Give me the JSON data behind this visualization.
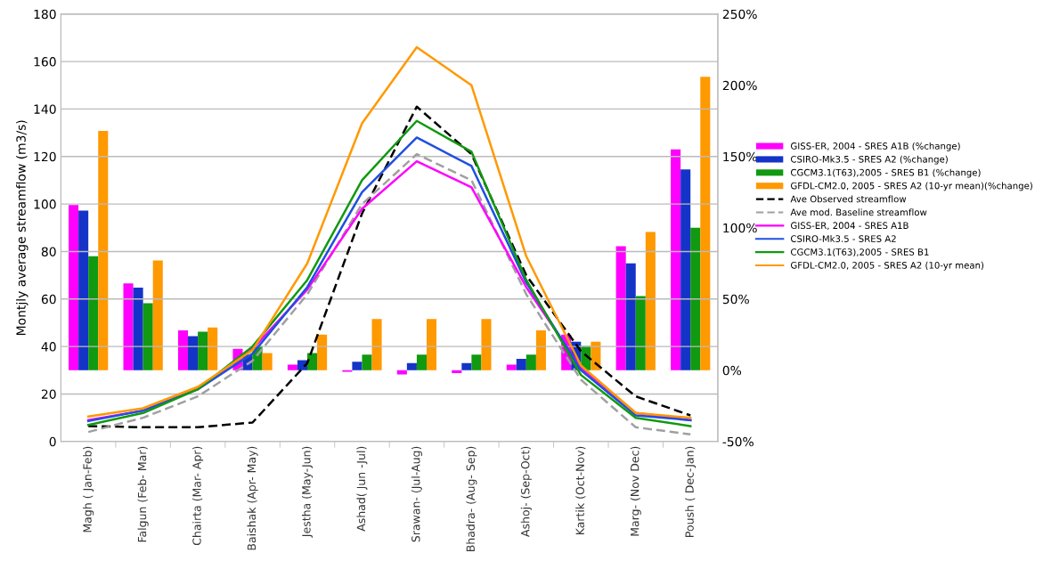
{
  "chart_data": {
    "type": "bar",
    "ylabel": "Montjly average streamflow (m3/s)",
    "categories": [
      "Magh ( Jan-Feb)",
      "Falgun (Feb- Mar)",
      "Chairta (Mar- Apr)",
      "Baishak (Apr- May)",
      "Jestha (May-Jun)",
      "Ashad( Jun -Jul)",
      "Srawan- (Jul-Aug)",
      "Bhadra- (Aug- Sep)",
      "Ashoj- (Sep-Oct)",
      "Kartik (Oct-Nov)",
      "Marg- (Nov Dec)",
      "Poush ( Dec-Jan)"
    ],
    "series": [
      {
        "name": "GISS-ER, 2004 - SRES A1B (%change)",
        "axis": "y2",
        "color": "#ff00ff",
        "values": [
          116,
          61,
          28,
          15,
          4,
          -1,
          -3,
          -2,
          4,
          25,
          87,
          155
        ]
      },
      {
        "name": "CSIRO-Mk3.5 - SRES A2 (%change)",
        "axis": "y2",
        "color": "#1434c8",
        "values": [
          112,
          58,
          24,
          11,
          7,
          6,
          5,
          5,
          8,
          20,
          75,
          141
        ]
      },
      {
        "name": "CGCM3.1(T63),2005 - SRES B1 (%change)",
        "axis": "y2",
        "color": "#119911",
        "values": [
          80,
          47,
          27,
          17,
          12,
          11,
          11,
          11,
          11,
          17,
          52,
          100
        ]
      },
      {
        "name": "GFDL-CM2.0, 2005 - SRES A2 (10-yr mean)(%change)",
        "axis": "y2",
        "color": "#ff9900",
        "values": [
          168,
          77,
          30,
          12,
          25,
          36,
          36,
          36,
          28,
          20,
          97,
          206
        ]
      },
      {
        "name": "Ave Observed streamflow",
        "type": "line",
        "line_style": "dashed",
        "color": "#000000",
        "values": [
          6.5,
          6,
          6,
          8,
          33,
          96,
          141,
          121,
          70,
          38,
          19,
          11
        ]
      },
      {
        "name": "Ave mod. Baseline streamflow",
        "type": "line",
        "line_style": "dashed",
        "color": "#a0a0a0",
        "values": [
          4,
          10,
          19,
          34,
          62,
          100,
          121,
          110,
          62,
          26,
          6,
          3
        ]
      },
      {
        "name": "GISS-ER, 2004 - SRES A1B",
        "type": "line",
        "line_style": "solid",
        "color": "#ff00ff",
        "values": [
          9,
          13,
          22,
          39,
          64,
          98,
          118,
          107,
          65,
          31,
          12,
          9
        ]
      },
      {
        "name": "CSIRO-Mk3.5 - SRES A2",
        "type": "line",
        "line_style": "solid",
        "color": "#1f4fe0",
        "values": [
          8.6,
          13,
          22,
          37,
          65,
          105,
          128,
          116,
          67,
          30,
          11,
          9
        ]
      },
      {
        "name": "CGCM3.1(T63),2005 - SRES B1",
        "type": "line",
        "line_style": "solid",
        "color": "#119911",
        "values": [
          7,
          12,
          22,
          40,
          68,
          110,
          135,
          122,
          68,
          28,
          10,
          6.5
        ]
      },
      {
        "name": "GFDL-CM2.0, 2005 - SRES A2 (10-yr mean)",
        "type": "line",
        "line_style": "solid",
        "color": "#ff9900",
        "values": [
          10.5,
          14,
          23,
          38.5,
          75,
          134,
          166,
          150,
          78,
          32,
          12,
          10
        ]
      }
    ],
    "ylim": [
      0,
      180
    ],
    "yticks": [
      0,
      20,
      40,
      60,
      80,
      100,
      120,
      140,
      160,
      180
    ],
    "y2lim": [
      -50,
      250
    ],
    "y2ticks": [
      {
        "value": -50,
        "label": "-50%"
      },
      {
        "value": 0,
        "label": "0%"
      },
      {
        "value": 50,
        "label": "50%"
      },
      {
        "value": 100,
        "label": "100%"
      },
      {
        "value": 150,
        "label": "150%"
      },
      {
        "value": 200,
        "label": "200%"
      },
      {
        "value": 250,
        "label": "250%"
      }
    ],
    "grid": "y",
    "legend": "right"
  }
}
